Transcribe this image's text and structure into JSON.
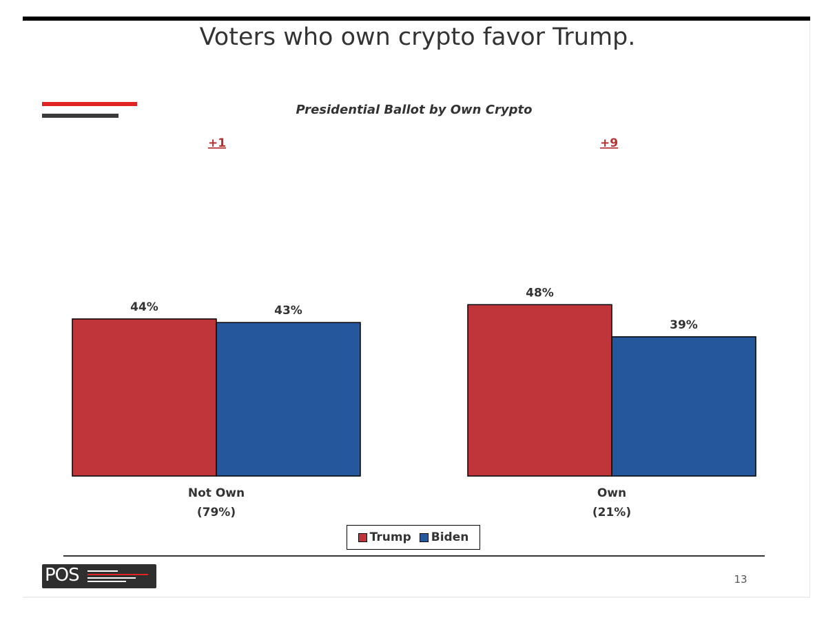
{
  "slide": {
    "title": "Voters who own crypto favor Trump.",
    "page_number": "13",
    "logo_text": "POS"
  },
  "colors": {
    "trump": "#c0353a",
    "biden": "#24579c",
    "accent_red": "#e02424",
    "accent_dark": "#3a3a3a",
    "margin_text": "#b3312f"
  },
  "chart_data": {
    "type": "bar",
    "title": "Presidential Ballot by Own Crypto",
    "categories": [
      "Not Own",
      "Own"
    ],
    "category_shares": [
      "(79%)",
      "(21%)"
    ],
    "margins": [
      "+1",
      "+9"
    ],
    "series": [
      {
        "name": "Trump",
        "values": [
          44,
          48
        ],
        "labels": [
          "44%",
          "48%"
        ]
      },
      {
        "name": "Biden",
        "values": [
          43,
          39
        ],
        "labels": [
          "43%",
          "39%"
        ]
      }
    ],
    "ylim": [
      0,
      100
    ],
    "grid": false,
    "legend": "bottom-center"
  }
}
